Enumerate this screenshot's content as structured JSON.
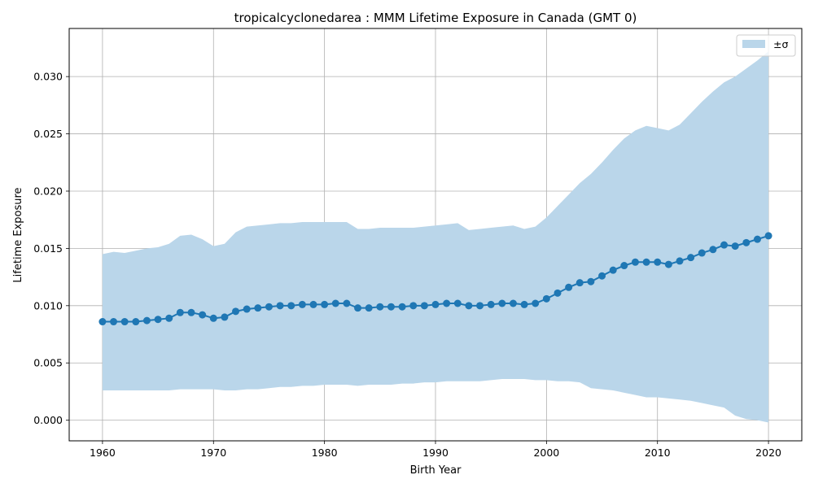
{
  "chart_data": {
    "type": "line",
    "title": "tropicalcyclonedarea : MMM Lifetime Exposure in Canada (GMT 0)",
    "xlabel": "Birth Year",
    "ylabel": "Lifetime Exposure",
    "xlim": [
      1957,
      2023
    ],
    "ylim": [
      -0.0018,
      0.0342
    ],
    "x_ticks": [
      1960,
      1970,
      1980,
      1990,
      2000,
      2010,
      2020
    ],
    "y_ticks": [
      0.0,
      0.005,
      0.01,
      0.015,
      0.02,
      0.025,
      0.03
    ],
    "y_tick_labels": [
      "0.000",
      "0.005",
      "0.010",
      "0.015",
      "0.020",
      "0.025",
      "0.030"
    ],
    "grid": true,
    "legend": {
      "placement": "top-right",
      "entries": [
        "±σ"
      ]
    },
    "colors": {
      "line": "#1f77b4",
      "band": "#bad6ea"
    },
    "x": [
      1960,
      1961,
      1962,
      1963,
      1964,
      1965,
      1966,
      1967,
      1968,
      1969,
      1970,
      1971,
      1972,
      1973,
      1974,
      1975,
      1976,
      1977,
      1978,
      1979,
      1980,
      1981,
      1982,
      1983,
      1984,
      1985,
      1986,
      1987,
      1988,
      1989,
      1990,
      1991,
      1992,
      1993,
      1994,
      1995,
      1996,
      1997,
      1998,
      1999,
      2000,
      2001,
      2002,
      2003,
      2004,
      2005,
      2006,
      2007,
      2008,
      2009,
      2010,
      2011,
      2012,
      2013,
      2014,
      2015,
      2016,
      2017,
      2018,
      2019,
      2020
    ],
    "series": [
      {
        "name": "",
        "values": [
          0.0086,
          0.0086,
          0.0086,
          0.0086,
          0.0087,
          0.0088,
          0.0089,
          0.0094,
          0.0094,
          0.0092,
          0.0089,
          0.009,
          0.0095,
          0.0097,
          0.0098,
          0.0099,
          0.01,
          0.01,
          0.0101,
          0.0101,
          0.0101,
          0.0102,
          0.0102,
          0.0098,
          0.0098,
          0.0099,
          0.0099,
          0.0099,
          0.01,
          0.01,
          0.0101,
          0.0102,
          0.0102,
          0.01,
          0.01,
          0.0101,
          0.0102,
          0.0102,
          0.0101,
          0.0102,
          0.0106,
          0.0111,
          0.0116,
          0.012,
          0.0121,
          0.0126,
          0.0131,
          0.0135,
          0.0138,
          0.0138,
          0.0138,
          0.0136,
          0.0139,
          0.0142,
          0.0146,
          0.0149,
          0.0153,
          0.0152,
          0.0155,
          0.0158,
          0.0161
        ]
      }
    ],
    "band": {
      "name": "±σ",
      "upper": [
        0.0145,
        0.0147,
        0.0146,
        0.0148,
        0.015,
        0.0151,
        0.0154,
        0.0161,
        0.0162,
        0.0158,
        0.0152,
        0.0154,
        0.0164,
        0.0169,
        0.017,
        0.0171,
        0.0172,
        0.0172,
        0.0173,
        0.0173,
        0.0173,
        0.0173,
        0.0173,
        0.0167,
        0.0167,
        0.0168,
        0.0168,
        0.0168,
        0.0168,
        0.0169,
        0.017,
        0.0171,
        0.0172,
        0.0166,
        0.0167,
        0.0168,
        0.0169,
        0.017,
        0.0167,
        0.0169,
        0.0177,
        0.0187,
        0.0197,
        0.0207,
        0.0215,
        0.0225,
        0.0236,
        0.0246,
        0.0253,
        0.0257,
        0.0255,
        0.0253,
        0.0258,
        0.0268,
        0.0278,
        0.0287,
        0.0295,
        0.03,
        0.0307,
        0.0314,
        0.0322
      ],
      "lower": [
        0.0026,
        0.0026,
        0.0026,
        0.0026,
        0.0026,
        0.0026,
        0.0026,
        0.0027,
        0.0027,
        0.0027,
        0.0027,
        0.0026,
        0.0026,
        0.0027,
        0.0027,
        0.0028,
        0.0029,
        0.0029,
        0.003,
        0.003,
        0.0031,
        0.0031,
        0.0031,
        0.003,
        0.0031,
        0.0031,
        0.0031,
        0.0032,
        0.0032,
        0.0033,
        0.0033,
        0.0034,
        0.0034,
        0.0034,
        0.0034,
        0.0035,
        0.0036,
        0.0036,
        0.0036,
        0.0035,
        0.0035,
        0.0034,
        0.0034,
        0.0033,
        0.0028,
        0.0027,
        0.0026,
        0.0024,
        0.0022,
        0.002,
        0.002,
        0.0019,
        0.0018,
        0.0017,
        0.0015,
        0.0013,
        0.0011,
        0.0004,
        0.0001,
        0.0,
        -0.0002
      ]
    }
  }
}
